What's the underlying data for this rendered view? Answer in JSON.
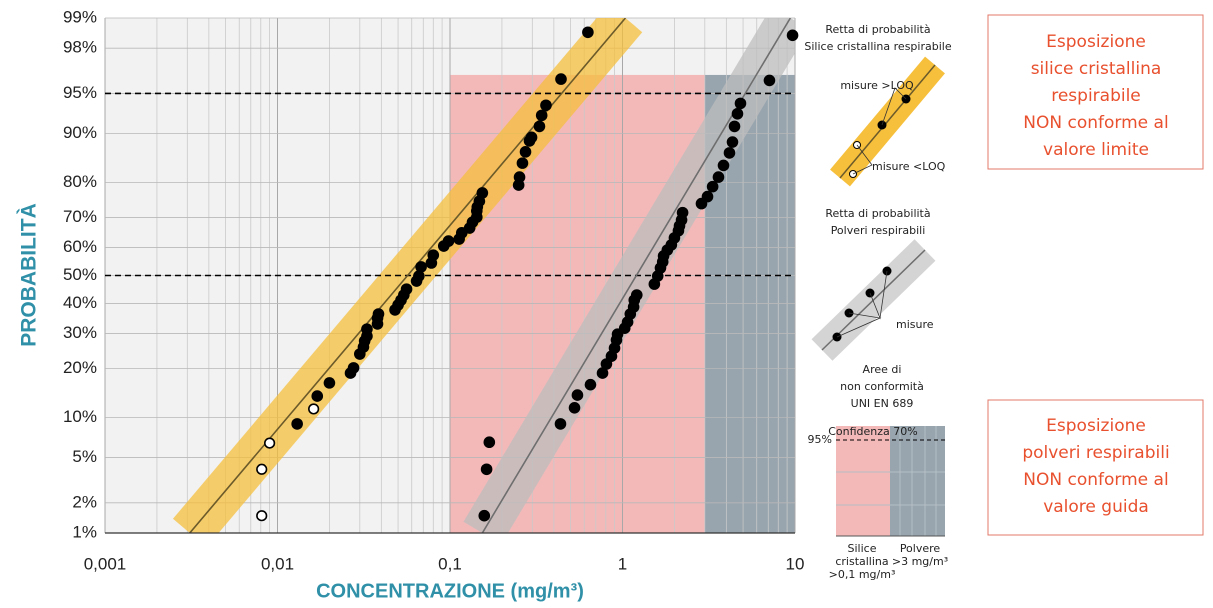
{
  "chart_data": {
    "type": "scatter",
    "ylabel": "PROBABILITÀ",
    "xlabel": "CONCENTRAZIONE (mg/m³)",
    "xscale": "log",
    "yscale": "probability",
    "xlim": [
      0.001,
      10
    ],
    "ylim": [
      1,
      99
    ],
    "xticks": [
      {
        "value": 0.001,
        "label": "0,001"
      },
      {
        "value": 0.01,
        "label": "0,01"
      },
      {
        "value": 0.1,
        "label": "0,1"
      },
      1,
      10
    ],
    "xminorticks": [
      0.002,
      0.003,
      0.004,
      0.005,
      0.006,
      0.007,
      0.008,
      0.009,
      0.02,
      0.03,
      0.04,
      0.05,
      0.06,
      0.07,
      0.08,
      0.09,
      0.2,
      0.3,
      0.4,
      0.5,
      0.6,
      0.7,
      0.8,
      0.9,
      2,
      3,
      4,
      5,
      6,
      7,
      8,
      9
    ],
    "yticks": [
      {
        "value": 1,
        "label": "1%"
      },
      {
        "value": 2,
        "label": "2%"
      },
      {
        "value": 5,
        "label": "5%"
      },
      {
        "value": 10,
        "label": "10%"
      },
      {
        "value": 20,
        "label": "20%"
      },
      {
        "value": 30,
        "label": "30%"
      },
      {
        "value": 40,
        "label": "40%"
      },
      {
        "value": 50,
        "label": "50%"
      },
      {
        "value": 60,
        "label": "60%"
      },
      {
        "value": 70,
        "label": "70%"
      },
      {
        "value": 80,
        "label": "80%"
      },
      {
        "value": 90,
        "label": "90%"
      },
      {
        "value": 95,
        "label": "95%"
      },
      {
        "value": 98,
        "label": "98%"
      },
      {
        "value": 99,
        "label": "99%"
      }
    ],
    "grid": true,
    "regions": [
      {
        "xlim": [
          0.1,
          3
        ],
        "ylim": [
          1,
          96.5
        ],
        "color": "#f3b9b9"
      },
      {
        "xlim": [
          3,
          10
        ],
        "ylim": [
          1,
          96.5
        ],
        "color": "#98a5ae"
      }
    ],
    "hlines": [
      95,
      50
    ],
    "series": [
      {
        "name": "misure >LOQ",
        "marker": "filled",
        "color": "#000000",
        "band_color": "#f6bf3c",
        "x": [
          0.013,
          0.017,
          0.02,
          0.0265,
          0.0276,
          0.03,
          0.0315,
          0.032,
          0.033,
          0.033,
          0.038,
          0.038,
          0.0385,
          0.048,
          0.05,
          0.052,
          0.054,
          0.056,
          0.064,
          0.066,
          0.068,
          0.078,
          0.08,
          0.092,
          0.098,
          0.113,
          0.117,
          0.13,
          0.135,
          0.143,
          0.143,
          0.144,
          0.148,
          0.154,
          0.25,
          0.253,
          0.263,
          0.274,
          0.289,
          0.297,
          0.33,
          0.34,
          0.36,
          0.44,
          0.63
        ],
        "values": [
          9.0,
          13.8,
          16.6,
          18.9,
          20.2,
          23.9,
          25.9,
          27.7,
          29.2,
          31.4,
          33.1,
          35.0,
          36.4,
          37.8,
          39.5,
          41.2,
          43.0,
          45.1,
          48.0,
          49.8,
          53.1,
          54.5,
          57.3,
          60.5,
          62.2,
          62.9,
          65.0,
          66.6,
          68.5,
          70.1,
          72.0,
          73.2,
          74.9,
          77.2,
          79.3,
          81.3,
          84.5,
          86.8,
          88.8,
          89.4,
          91.1,
          92.6,
          93.8,
          96.2,
          98.6
        ]
      },
      {
        "name": "misure <LOQ",
        "marker": "open",
        "color": "#000000",
        "x": [
          0.0081,
          0.0081,
          0.009,
          0.0162
        ],
        "values": [
          1.5,
          4.0,
          6.5,
          11.4
        ]
      },
      {
        "name": "misure",
        "marker": "filled",
        "color": "#000000",
        "band_color": "#bdbdbd",
        "x": [
          0.158,
          0.163,
          0.169,
          0.437,
          0.527,
          0.548,
          0.652,
          0.766,
          0.807,
          0.863,
          0.899,
          0.923,
          0.936,
          1.03,
          1.07,
          1.11,
          1.16,
          1.17,
          1.21,
          1.53,
          1.6,
          1.66,
          1.71,
          1.73,
          1.82,
          1.92,
          2.0,
          2.11,
          2.14,
          2.2,
          2.23,
          2.87,
          3.11,
          3.33,
          3.6,
          3.85,
          4.17,
          4.34,
          4.46,
          4.64,
          4.83,
          7.11,
          9.68
        ],
        "values": [
          1.5,
          4.0,
          6.6,
          9.0,
          11.6,
          14.0,
          16.2,
          18.9,
          21.2,
          23.3,
          25.6,
          28.0,
          29.8,
          31.7,
          33.7,
          36.4,
          38.8,
          41.2,
          43.0,
          46.9,
          49.8,
          52.7,
          54.9,
          57.0,
          59.1,
          60.9,
          63.3,
          65.7,
          67.3,
          69.2,
          71.5,
          74.2,
          76.2,
          78.9,
          81.3,
          84.0,
          86.6,
          88.6,
          91.1,
          92.8,
          94.0,
          96.1,
          98.5
        ]
      }
    ],
    "fit_lines": [
      {
        "x": [
          0.0031,
          1.04
        ],
        "y": [
          1,
          99
        ],
        "color": "#6b5a2a",
        "band_color": "#f6bf3c"
      },
      {
        "x": [
          0.154,
          9.4
        ],
        "y": [
          1,
          99
        ],
        "color": "#6e6e6e",
        "band_color": "#bdbdbd"
      }
    ]
  },
  "legend_panel": {
    "silica_title": [
      "Retta di probabilità",
      "Silice cristallina respirabile"
    ],
    "dust_title": [
      "Retta di probabilità",
      "Polveri respirabili"
    ],
    "areas_title": [
      "Aree di",
      "non conformità",
      "UNI EN 689"
    ],
    "confidence": "Confidenza 70%",
    "level": "95%",
    "silica_area": [
      "Silice",
      "cristallina",
      ">0,1 mg/m³"
    ],
    "dust_area": [
      "Polvere",
      ">3 mg/m³"
    ]
  },
  "notes": [
    [
      "Esposizione",
      "silice cristallina",
      "respirabile",
      "NON conforme al",
      "valore limite"
    ],
    [
      "Esposizione",
      "polveri respirabili",
      "NON conforme al",
      "valore guida"
    ]
  ]
}
